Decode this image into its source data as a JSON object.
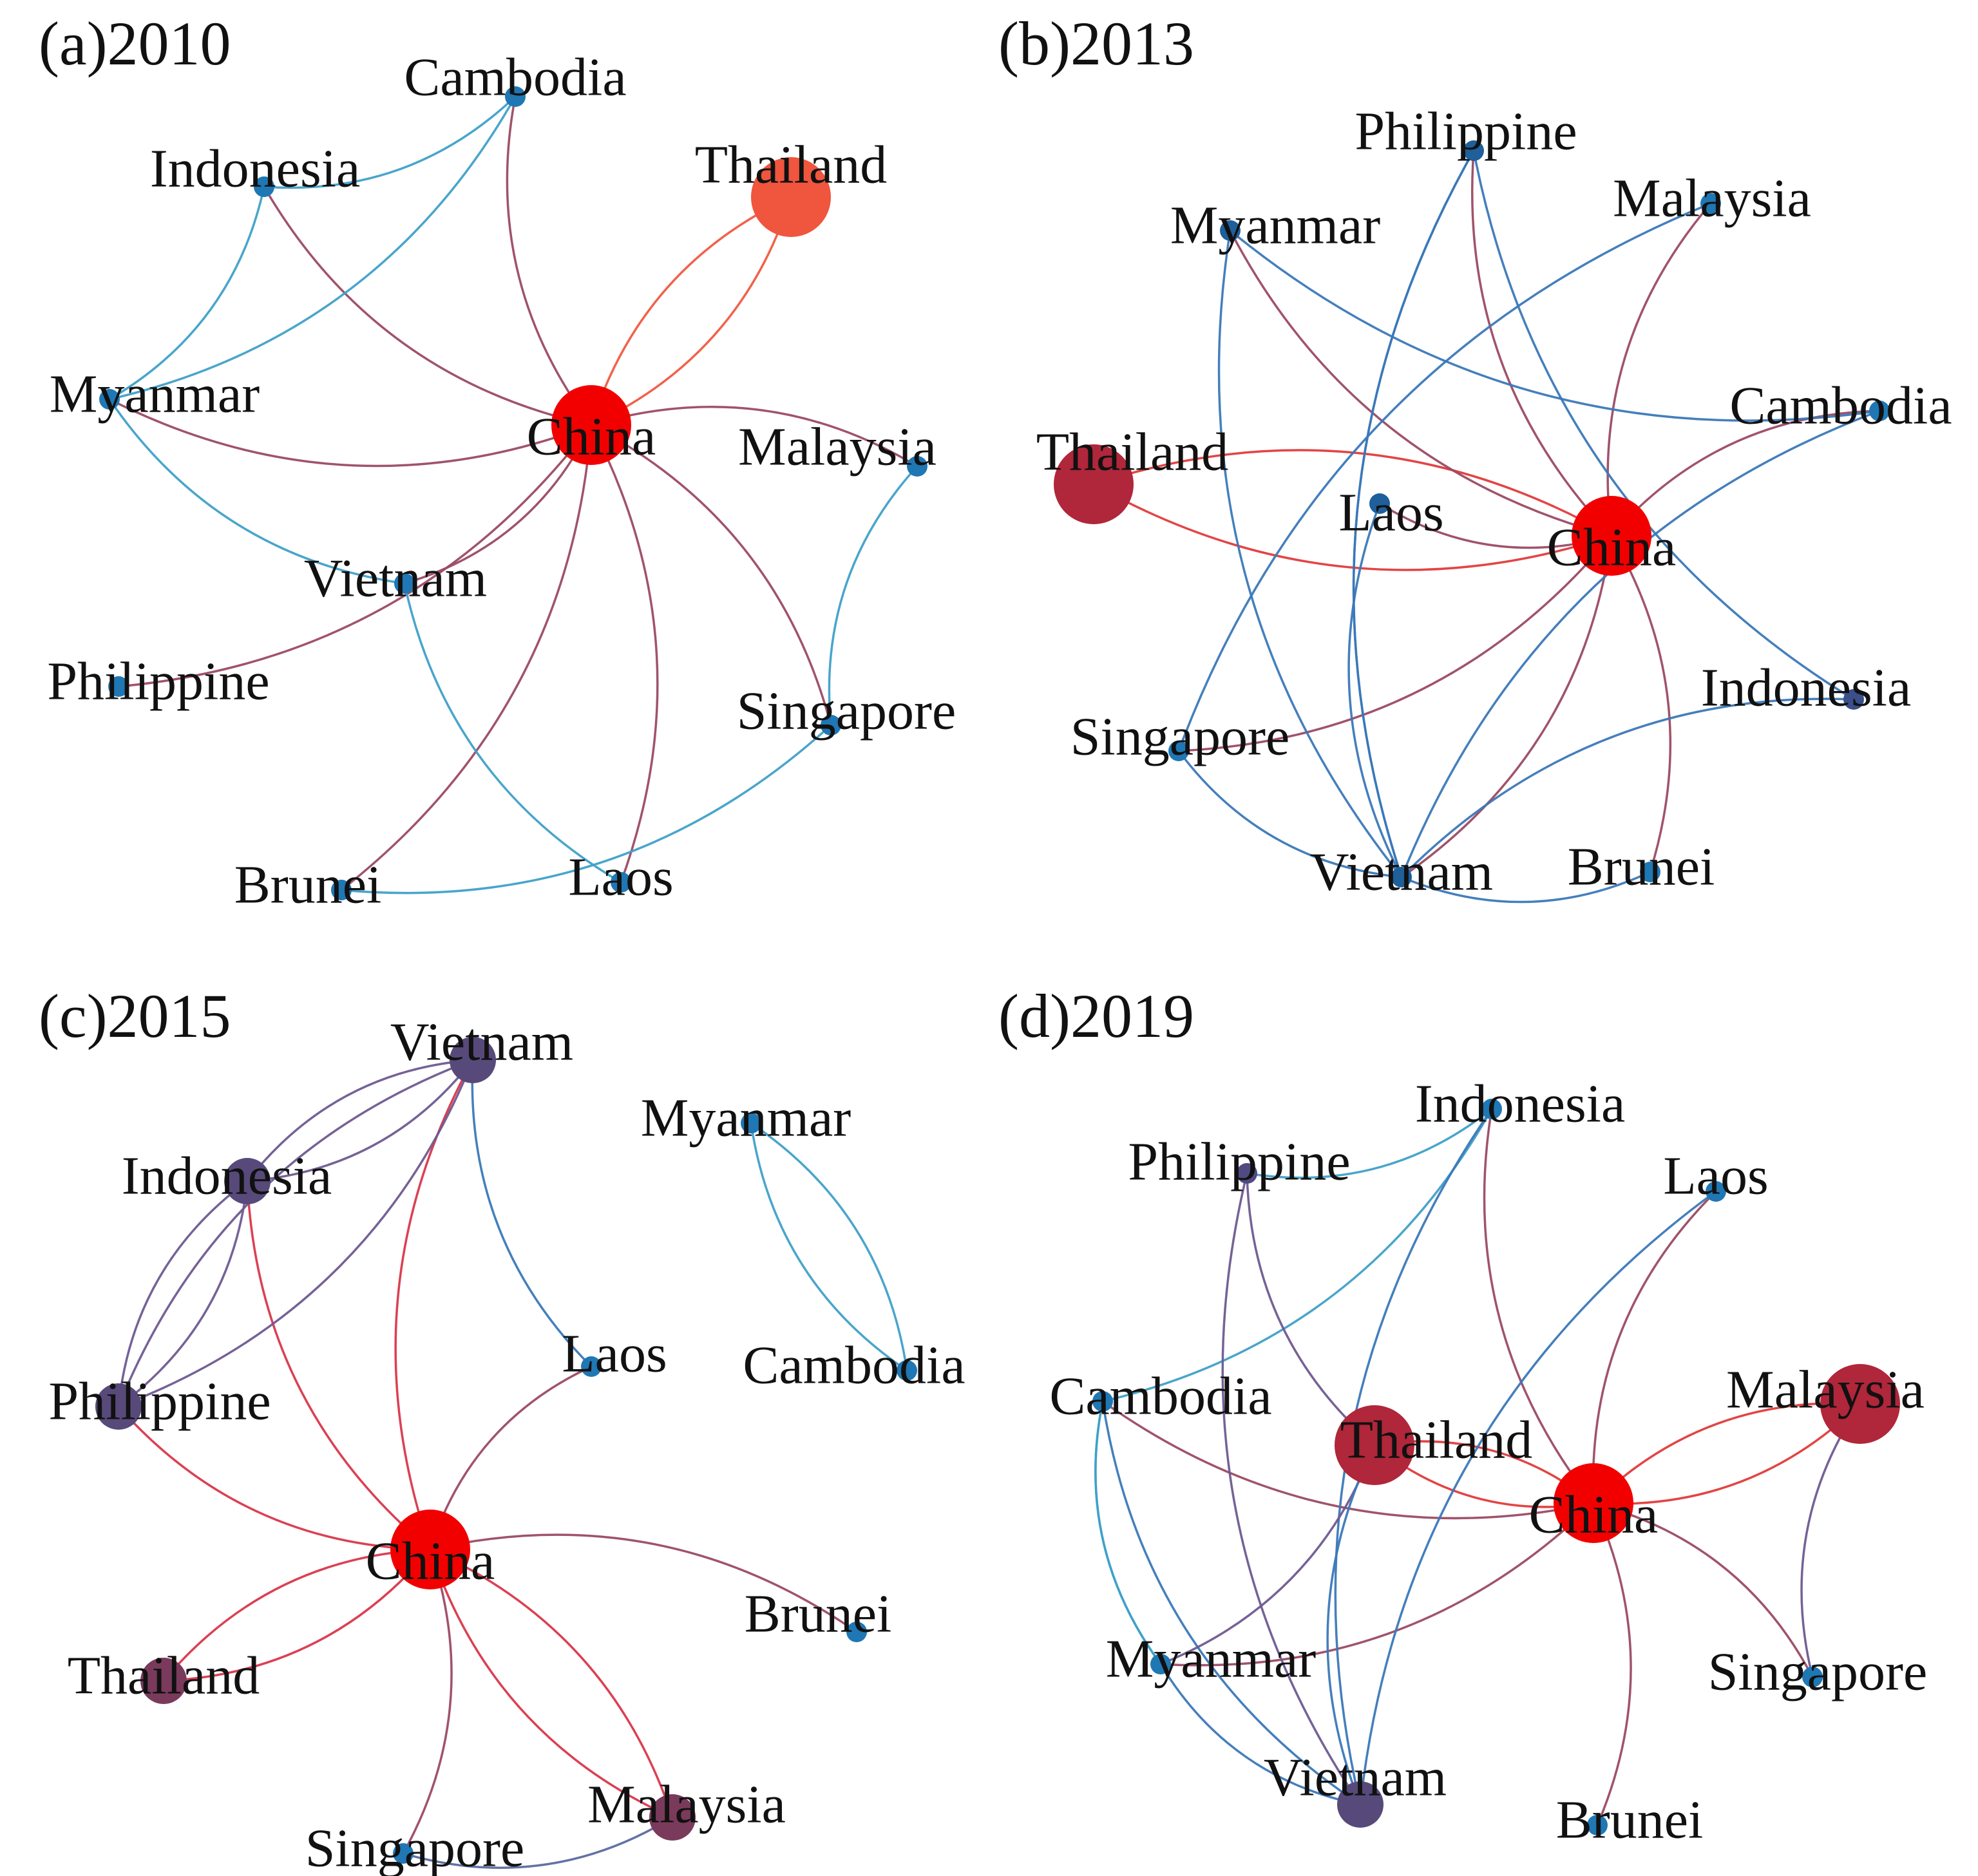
{
  "panels": [
    {
      "label": "(a)2010",
      "nodes": [
        {
          "id": "China",
          "label": "China",
          "color": "#f20000",
          "size": "large"
        },
        {
          "id": "Thailand",
          "label": "Thailand",
          "color": "#f0553d",
          "size": "large"
        },
        {
          "id": "Cambodia",
          "label": "Cambodia",
          "color": "#1f77b4",
          "size": "small"
        },
        {
          "id": "Indonesia",
          "label": "Indonesia",
          "color": "#1f77b4",
          "size": "small"
        },
        {
          "id": "Myanmar",
          "label": "Myanmar",
          "color": "#1f77b4",
          "size": "small"
        },
        {
          "id": "Malaysia",
          "label": "Malaysia",
          "color": "#1f77b4",
          "size": "small"
        },
        {
          "id": "Vietnam",
          "label": "Vietnam",
          "color": "#1f77b4",
          "size": "small"
        },
        {
          "id": "Philippine",
          "label": "Philippine",
          "color": "#1f77b4",
          "size": "small"
        },
        {
          "id": "Singapore",
          "label": "Singapore",
          "color": "#1f77b4",
          "size": "small"
        },
        {
          "id": "Brunei",
          "label": "Brunei",
          "color": "#1f77b4",
          "size": "small"
        },
        {
          "id": "Laos",
          "label": "Laos",
          "color": "#1f77b4",
          "size": "small"
        }
      ],
      "edges": [
        {
          "from": "Thailand",
          "to": "China",
          "color": "#f05a40"
        },
        {
          "from": "China",
          "to": "Thailand",
          "color": "#f05a40"
        },
        {
          "from": "Cambodia",
          "to": "China",
          "color": "#9b4a63"
        },
        {
          "from": "Indonesia",
          "to": "China",
          "color": "#9b4a63"
        },
        {
          "from": "Myanmar",
          "to": "China",
          "color": "#9b4a63"
        },
        {
          "from": "Malaysia",
          "to": "China",
          "color": "#9b4a63"
        },
        {
          "from": "Vietnam",
          "to": "China",
          "color": "#9b4a63"
        },
        {
          "from": "Philippine",
          "to": "China",
          "color": "#9b4a63"
        },
        {
          "from": "Singapore",
          "to": "China",
          "color": "#9b4a63"
        },
        {
          "from": "Brunei",
          "to": "China",
          "color": "#9b4a63"
        },
        {
          "from": "Laos",
          "to": "China",
          "color": "#9b4a63"
        },
        {
          "from": "Indonesia",
          "to": "Cambodia",
          "color": "#3fa0c8"
        },
        {
          "from": "Myanmar",
          "to": "Indonesia",
          "color": "#3fa0c8"
        },
        {
          "from": "Myanmar",
          "to": "Cambodia",
          "color": "#3fa0c8"
        },
        {
          "from": "Myanmar",
          "to": "Vietnam",
          "color": "#3fa0c8"
        },
        {
          "from": "Vietnam",
          "to": "Laos",
          "color": "#3fa0c8"
        },
        {
          "from": "Malaysia",
          "to": "Singapore",
          "color": "#3fa0c8"
        },
        {
          "from": "Brunei",
          "to": "Singapore",
          "color": "#3fa0c8"
        }
      ]
    },
    {
      "label": "(b)2013",
      "nodes": [
        {
          "id": "China",
          "label": "China",
          "color": "#f20000",
          "size": "large"
        },
        {
          "id": "Thailand",
          "label": "Thailand",
          "color": "#b0263a",
          "size": "large"
        },
        {
          "id": "Philippine",
          "label": "Philippine",
          "color": "#1f5f9a",
          "size": "small"
        },
        {
          "id": "Myanmar",
          "label": "Myanmar",
          "color": "#1f5f9a",
          "size": "small"
        },
        {
          "id": "Malaysia",
          "label": "Malaysia",
          "color": "#1f77b4",
          "size": "small"
        },
        {
          "id": "Cambodia",
          "label": "Cambodia",
          "color": "#1f77b4",
          "size": "small"
        },
        {
          "id": "Laos",
          "label": "Laos",
          "color": "#1f5f9a",
          "size": "small"
        },
        {
          "id": "Indonesia",
          "label": "Indonesia",
          "color": "#3b4f8a",
          "size": "small"
        },
        {
          "id": "Singapore",
          "label": "Singapore",
          "color": "#1f77b4",
          "size": "small"
        },
        {
          "id": "Vietnam",
          "label": "Vietnam",
          "color": "#1f5f9a",
          "size": "small"
        },
        {
          "id": "Brunei",
          "label": "Brunei",
          "color": "#1f77b4",
          "size": "small"
        }
      ],
      "edges": [
        {
          "from": "Thailand",
          "to": "China",
          "color": "#e23a3a"
        },
        {
          "from": "China",
          "to": "Thailand",
          "color": "#e23a3a"
        },
        {
          "from": "Philippine",
          "to": "China",
          "color": "#9b4a63"
        },
        {
          "from": "Myanmar",
          "to": "China",
          "color": "#9b4a63"
        },
        {
          "from": "Malaysia",
          "to": "China",
          "color": "#9b4a63"
        },
        {
          "from": "Cambodia",
          "to": "China",
          "color": "#9b4a63"
        },
        {
          "from": "Laos",
          "to": "China",
          "color": "#9b4a63"
        },
        {
          "from": "Singapore",
          "to": "China",
          "color": "#9b4a63"
        },
        {
          "from": "Vietnam",
          "to": "China",
          "color": "#9b4a63"
        },
        {
          "from": "Brunei",
          "to": "China",
          "color": "#9b4a63"
        },
        {
          "from": "Philippine",
          "to": "Vietnam",
          "color": "#3a78b8"
        },
        {
          "from": "Philippine",
          "to": "Indonesia",
          "color": "#3a78b8"
        },
        {
          "from": "Philippine",
          "to": "Vietnam",
          "color": "#3a78b8"
        },
        {
          "from": "Myanmar",
          "to": "Cambodia",
          "color": "#3a78b8"
        },
        {
          "from": "Myanmar",
          "to": "Vietnam",
          "color": "#3a78b8"
        },
        {
          "from": "Malaysia",
          "to": "Singapore",
          "color": "#3a78b8"
        },
        {
          "from": "Cambodia",
          "to": "Vietnam",
          "color": "#3a78b8"
        },
        {
          "from": "Laos",
          "to": "Vietnam",
          "color": "#3a78b8"
        },
        {
          "from": "Indonesia",
          "to": "Vietnam",
          "color": "#3a78b8"
        },
        {
          "from": "Singapore",
          "to": "Vietnam",
          "color": "#3a78b8"
        },
        {
          "from": "Vietnam",
          "to": "Brunei",
          "color": "#3a78b8"
        }
      ]
    },
    {
      "label": "(c)2015",
      "nodes": [
        {
          "id": "China",
          "label": "China",
          "color": "#f20000",
          "size": "large"
        },
        {
          "id": "Vietnam",
          "label": "Vietnam",
          "color": "#574a7a",
          "size": "medium"
        },
        {
          "id": "Indonesia",
          "label": "Indonesia",
          "color": "#574a7a",
          "size": "medium"
        },
        {
          "id": "Philippine",
          "label": "Philippine",
          "color": "#574a7a",
          "size": "medium"
        },
        {
          "id": "Laos",
          "label": "Laos",
          "color": "#1f77b4",
          "size": "small"
        },
        {
          "id": "Myanmar",
          "label": "Myanmar",
          "color": "#1f77b4",
          "size": "small"
        },
        {
          "id": "Cambodia",
          "label": "Cambodia",
          "color": "#1f77b4",
          "size": "small"
        },
        {
          "id": "Brunei",
          "label": "Brunei",
          "color": "#1f77b4",
          "size": "small"
        },
        {
          "id": "Thailand",
          "label": "Thailand",
          "color": "#7a3a5c",
          "size": "medium"
        },
        {
          "id": "Malaysia",
          "label": "Malaysia",
          "color": "#7a3a5c",
          "size": "medium"
        },
        {
          "id": "Singapore",
          "label": "Singapore",
          "color": "#1f77b4",
          "size": "small"
        }
      ],
      "edges": [
        {
          "from": "Vietnam",
          "to": "China",
          "color": "#d9364a"
        },
        {
          "from": "Indonesia",
          "to": "China",
          "color": "#d9364a"
        },
        {
          "from": "Philippine",
          "to": "China",
          "color": "#d9364a"
        },
        {
          "from": "Laos",
          "to": "China",
          "color": "#9b4a63"
        },
        {
          "from": "Brunei",
          "to": "China",
          "color": "#9b4a63"
        },
        {
          "from": "Thailand",
          "to": "China",
          "color": "#d9364a"
        },
        {
          "from": "China",
          "to": "Thailand",
          "color": "#d9364a"
        },
        {
          "from": "Malaysia",
          "to": "China",
          "color": "#d9364a"
        },
        {
          "from": "China",
          "to": "Malaysia",
          "color": "#d9364a"
        },
        {
          "from": "Singapore",
          "to": "China",
          "color": "#9b4a63"
        },
        {
          "from": "Vietnam",
          "to": "Indonesia",
          "color": "#6e5a90"
        },
        {
          "from": "Indonesia",
          "to": "Vietnam",
          "color": "#6e5a90"
        },
        {
          "from": "Vietnam",
          "to": "Philippine",
          "color": "#6e5a90"
        },
        {
          "from": "Philippine",
          "to": "Vietnam",
          "color": "#6e5a90"
        },
        {
          "from": "Indonesia",
          "to": "Philippine",
          "color": "#6e5a90"
        },
        {
          "from": "Philippine",
          "to": "Indonesia",
          "color": "#6e5a90"
        },
        {
          "from": "Vietnam",
          "to": "Laos",
          "color": "#3a78b8"
        },
        {
          "from": "Myanmar",
          "to": "Cambodia",
          "color": "#3fa0c8"
        },
        {
          "from": "Cambodia",
          "to": "Myanmar",
          "color": "#3fa0c8"
        },
        {
          "from": "Singapore",
          "to": "Malaysia",
          "color": "#5a6aa0"
        }
      ]
    },
    {
      "label": "(d)2019",
      "nodes": [
        {
          "id": "China",
          "label": "China",
          "color": "#f20000",
          "size": "large"
        },
        {
          "id": "Indonesia",
          "label": "Indonesia",
          "color": "#1f77b4",
          "size": "small"
        },
        {
          "id": "Philippine",
          "label": "Philippine",
          "color": "#4f4a80",
          "size": "small"
        },
        {
          "id": "Laos",
          "label": "Laos",
          "color": "#1f77b4",
          "size": "small"
        },
        {
          "id": "Malaysia",
          "label": "Malaysia",
          "color": "#b0263a",
          "size": "large"
        },
        {
          "id": "Cambodia",
          "label": "Cambodia",
          "color": "#1f77b4",
          "size": "small"
        },
        {
          "id": "Thailand",
          "label": "Thailand",
          "color": "#b0263a",
          "size": "large"
        },
        {
          "id": "Myanmar",
          "label": "Myanmar",
          "color": "#1f77b4",
          "size": "small"
        },
        {
          "id": "Singapore",
          "label": "Singapore",
          "color": "#1f77b4",
          "size": "small"
        },
        {
          "id": "Vietnam",
          "label": "Vietnam",
          "color": "#574a7a",
          "size": "medium"
        },
        {
          "id": "Brunei",
          "label": "Brunei",
          "color": "#1f77b4",
          "size": "small"
        }
      ],
      "edges": [
        {
          "from": "Thailand",
          "to": "China",
          "color": "#e23a3a"
        },
        {
          "from": "China",
          "to": "Thailand",
          "color": "#e23a3a"
        },
        {
          "from": "Malaysia",
          "to": "China",
          "color": "#e23a3a"
        },
        {
          "from": "China",
          "to": "Malaysia",
          "color": "#e23a3a"
        },
        {
          "from": "Indonesia",
          "to": "China",
          "color": "#9b4a63"
        },
        {
          "from": "Laos",
          "to": "China",
          "color": "#9b4a63"
        },
        {
          "from": "Cambodia",
          "to": "China",
          "color": "#9b4a63"
        },
        {
          "from": "Myanmar",
          "to": "China",
          "color": "#9b4a63"
        },
        {
          "from": "Singapore",
          "to": "China",
          "color": "#9b4a63"
        },
        {
          "from": "Brunei",
          "to": "China",
          "color": "#9b4a63"
        },
        {
          "from": "Philippine",
          "to": "Indonesia",
          "color": "#3fa0c8"
        },
        {
          "from": "Cambodia",
          "to": "Indonesia",
          "color": "#3fa0c8"
        },
        {
          "from": "Indonesia",
          "to": "Vietnam",
          "color": "#3a78b8"
        },
        {
          "from": "Philippine",
          "to": "Thailand",
          "color": "#6e5a90"
        },
        {
          "from": "Philippine",
          "to": "Vietnam",
          "color": "#6e5a90"
        },
        {
          "from": "Cambodia",
          "to": "Myanmar",
          "color": "#3fa0c8"
        },
        {
          "from": "Cambodia",
          "to": "Vietnam",
          "color": "#3a78b8"
        },
        {
          "from": "Cambodia",
          "to": "Myanmar",
          "color": "#3fa0c8"
        },
        {
          "from": "Myanmar",
          "to": "Thailand",
          "color": "#6e5a90"
        },
        {
          "from": "Myanmar",
          "to": "Vietnam",
          "color": "#3a78b8"
        },
        {
          "from": "Thailand",
          "to": "Vietnam",
          "color": "#3a78b8"
        },
        {
          "from": "Laos",
          "to": "Vietnam",
          "color": "#3a78b8"
        },
        {
          "from": "Malaysia",
          "to": "Singapore",
          "color": "#6e5a90"
        }
      ]
    }
  ]
}
